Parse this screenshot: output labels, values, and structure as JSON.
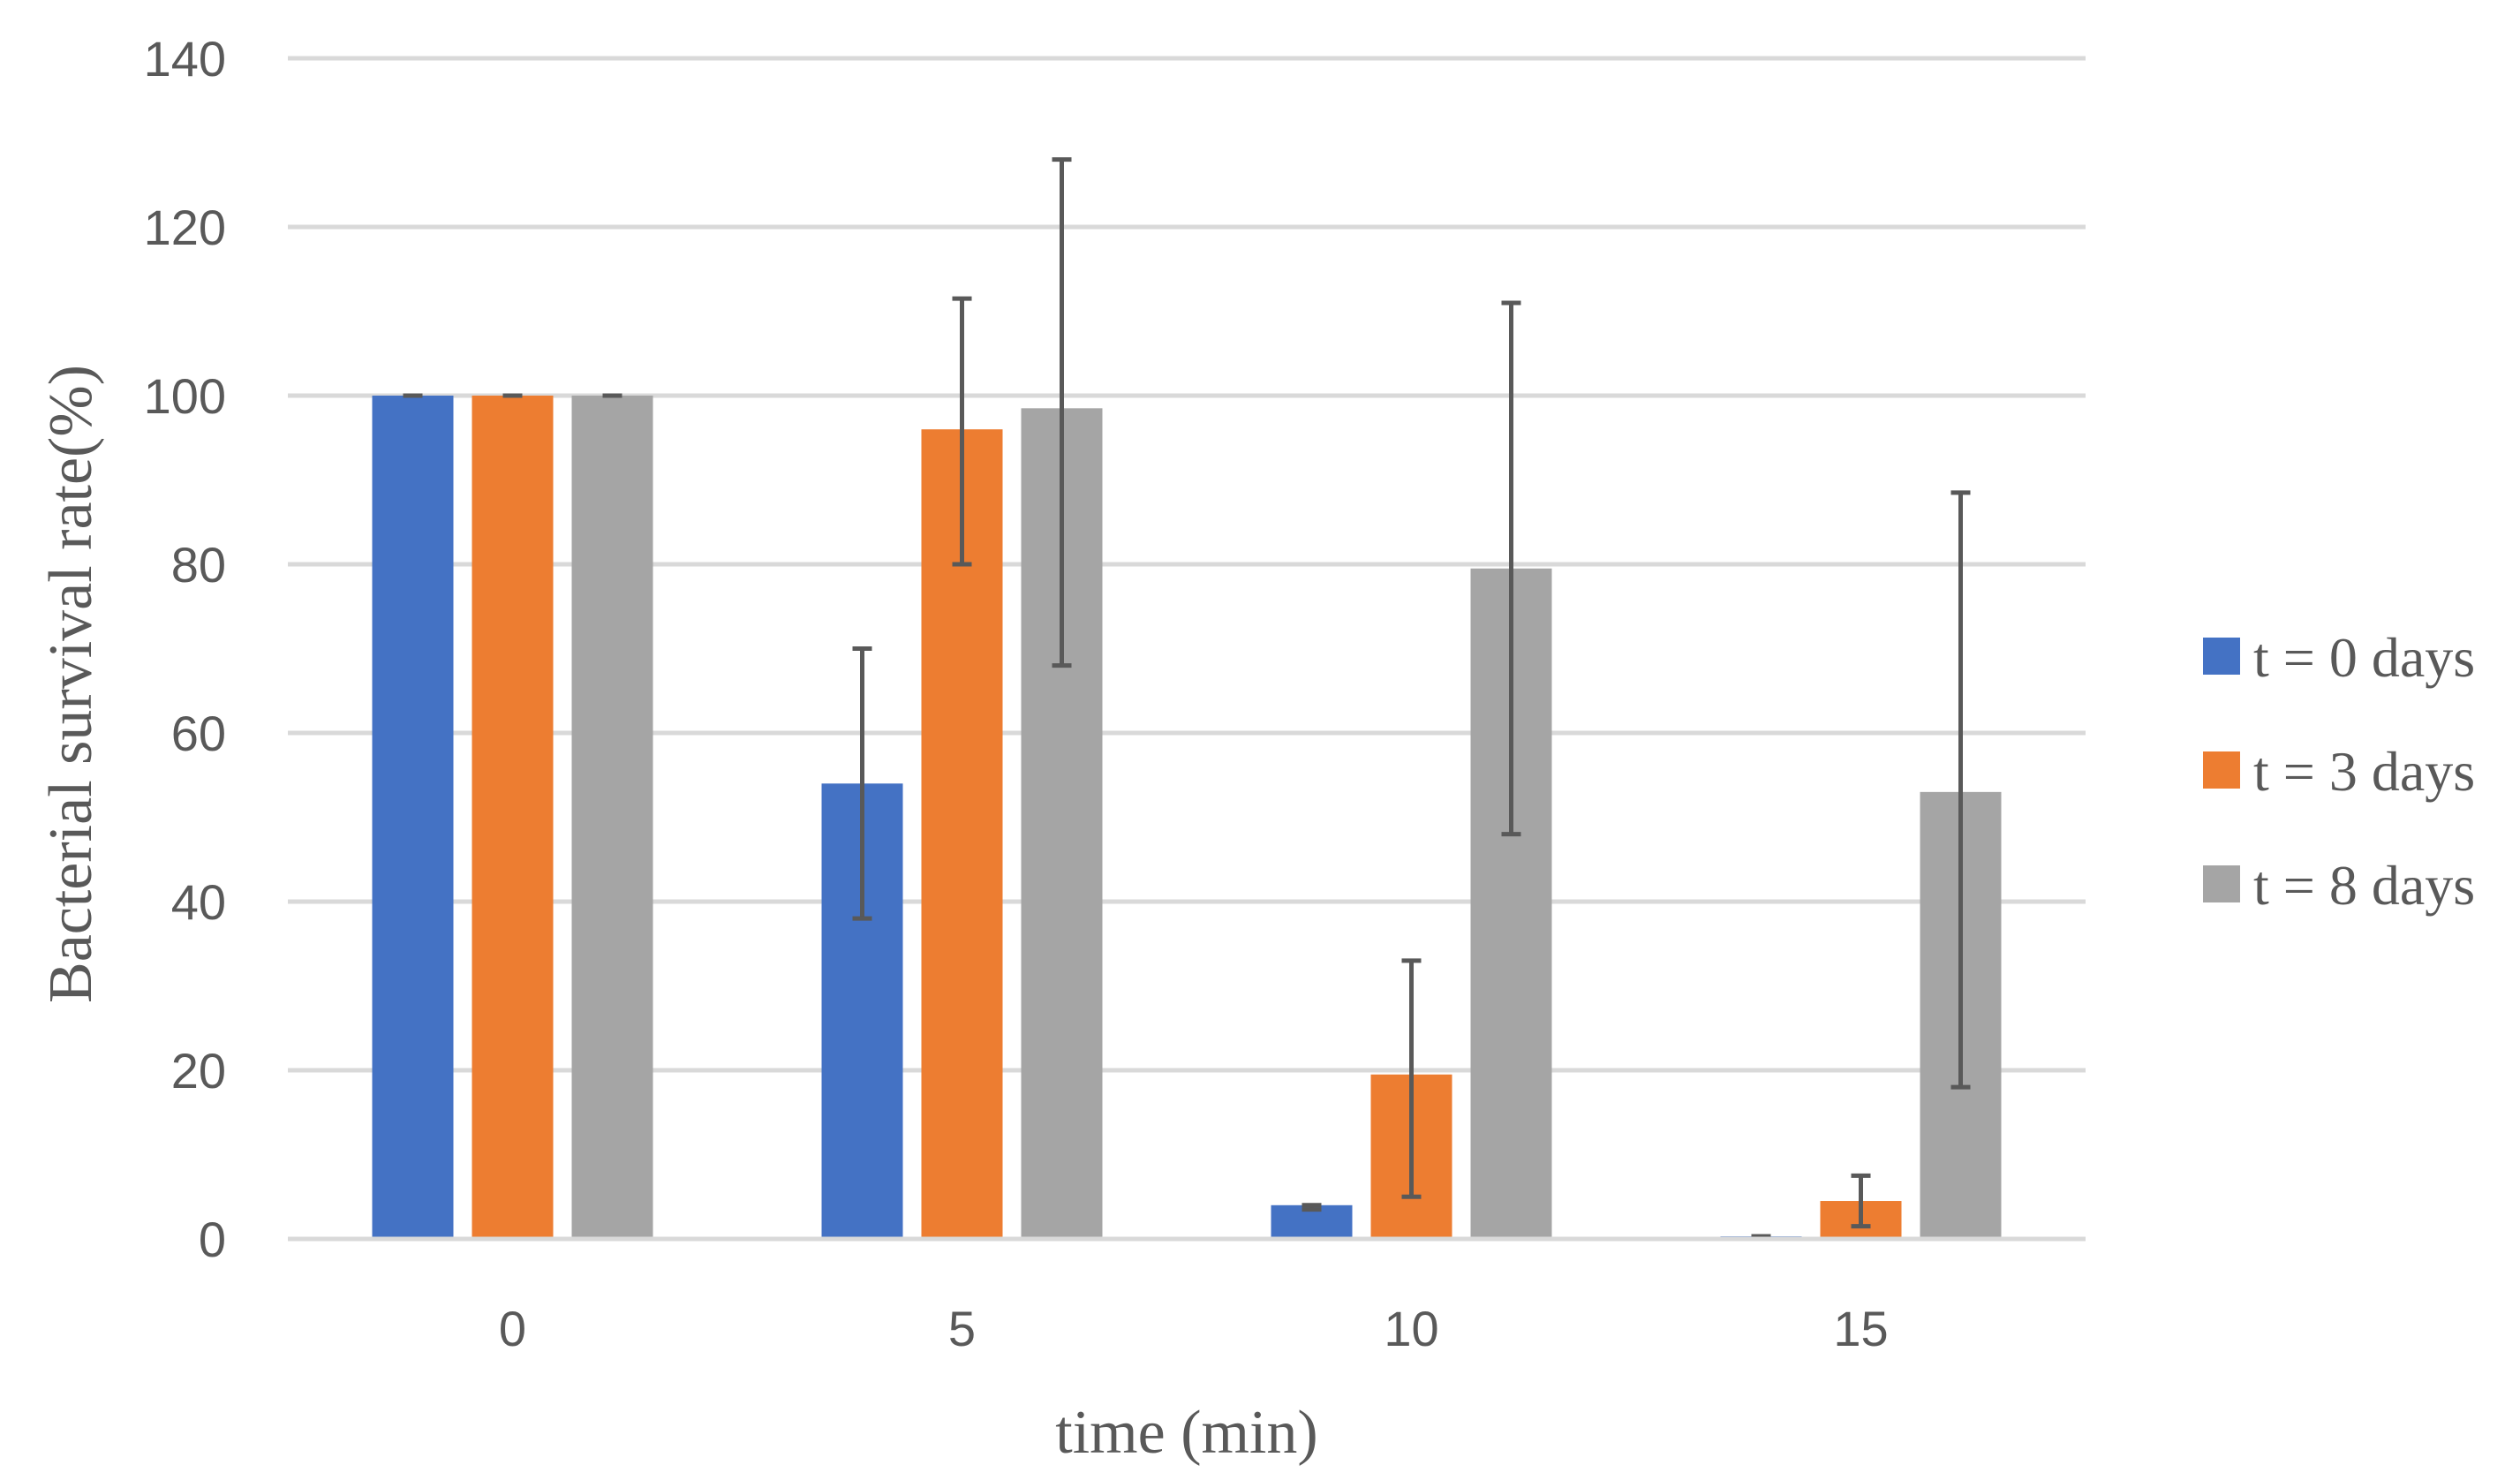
{
  "chart_data": {
    "type": "bar",
    "title": "",
    "xlabel": "time (min)",
    "ylabel": "Bacterial survival rate(%)",
    "categories": [
      "0",
      "5",
      "10",
      "15"
    ],
    "ylim": [
      0,
      140
    ],
    "yticks": [
      0,
      20,
      40,
      60,
      80,
      100,
      120,
      140
    ],
    "grid": true,
    "legend_position": "right",
    "series": [
      {
        "name": "t = 0 days",
        "color": "#4472c4",
        "values": [
          100,
          54,
          4,
          0.3
        ],
        "error_low": [
          100,
          38,
          3.5,
          0.3
        ],
        "error_high": [
          100,
          70,
          4,
          0.3
        ]
      },
      {
        "name": "t = 3 days",
        "color": "#ed7d31",
        "values": [
          100,
          96,
          19.5,
          4.5
        ],
        "error_low": [
          100,
          80,
          5,
          1.5
        ],
        "error_high": [
          100,
          111.5,
          33,
          7.5
        ]
      },
      {
        "name": "t = 8 days",
        "color": "#a5a5a5",
        "values": [
          100,
          98.5,
          79.5,
          53
        ],
        "error_low": [
          100,
          68,
          48,
          18
        ],
        "error_high": [
          100,
          128,
          111,
          88.5
        ]
      }
    ]
  }
}
